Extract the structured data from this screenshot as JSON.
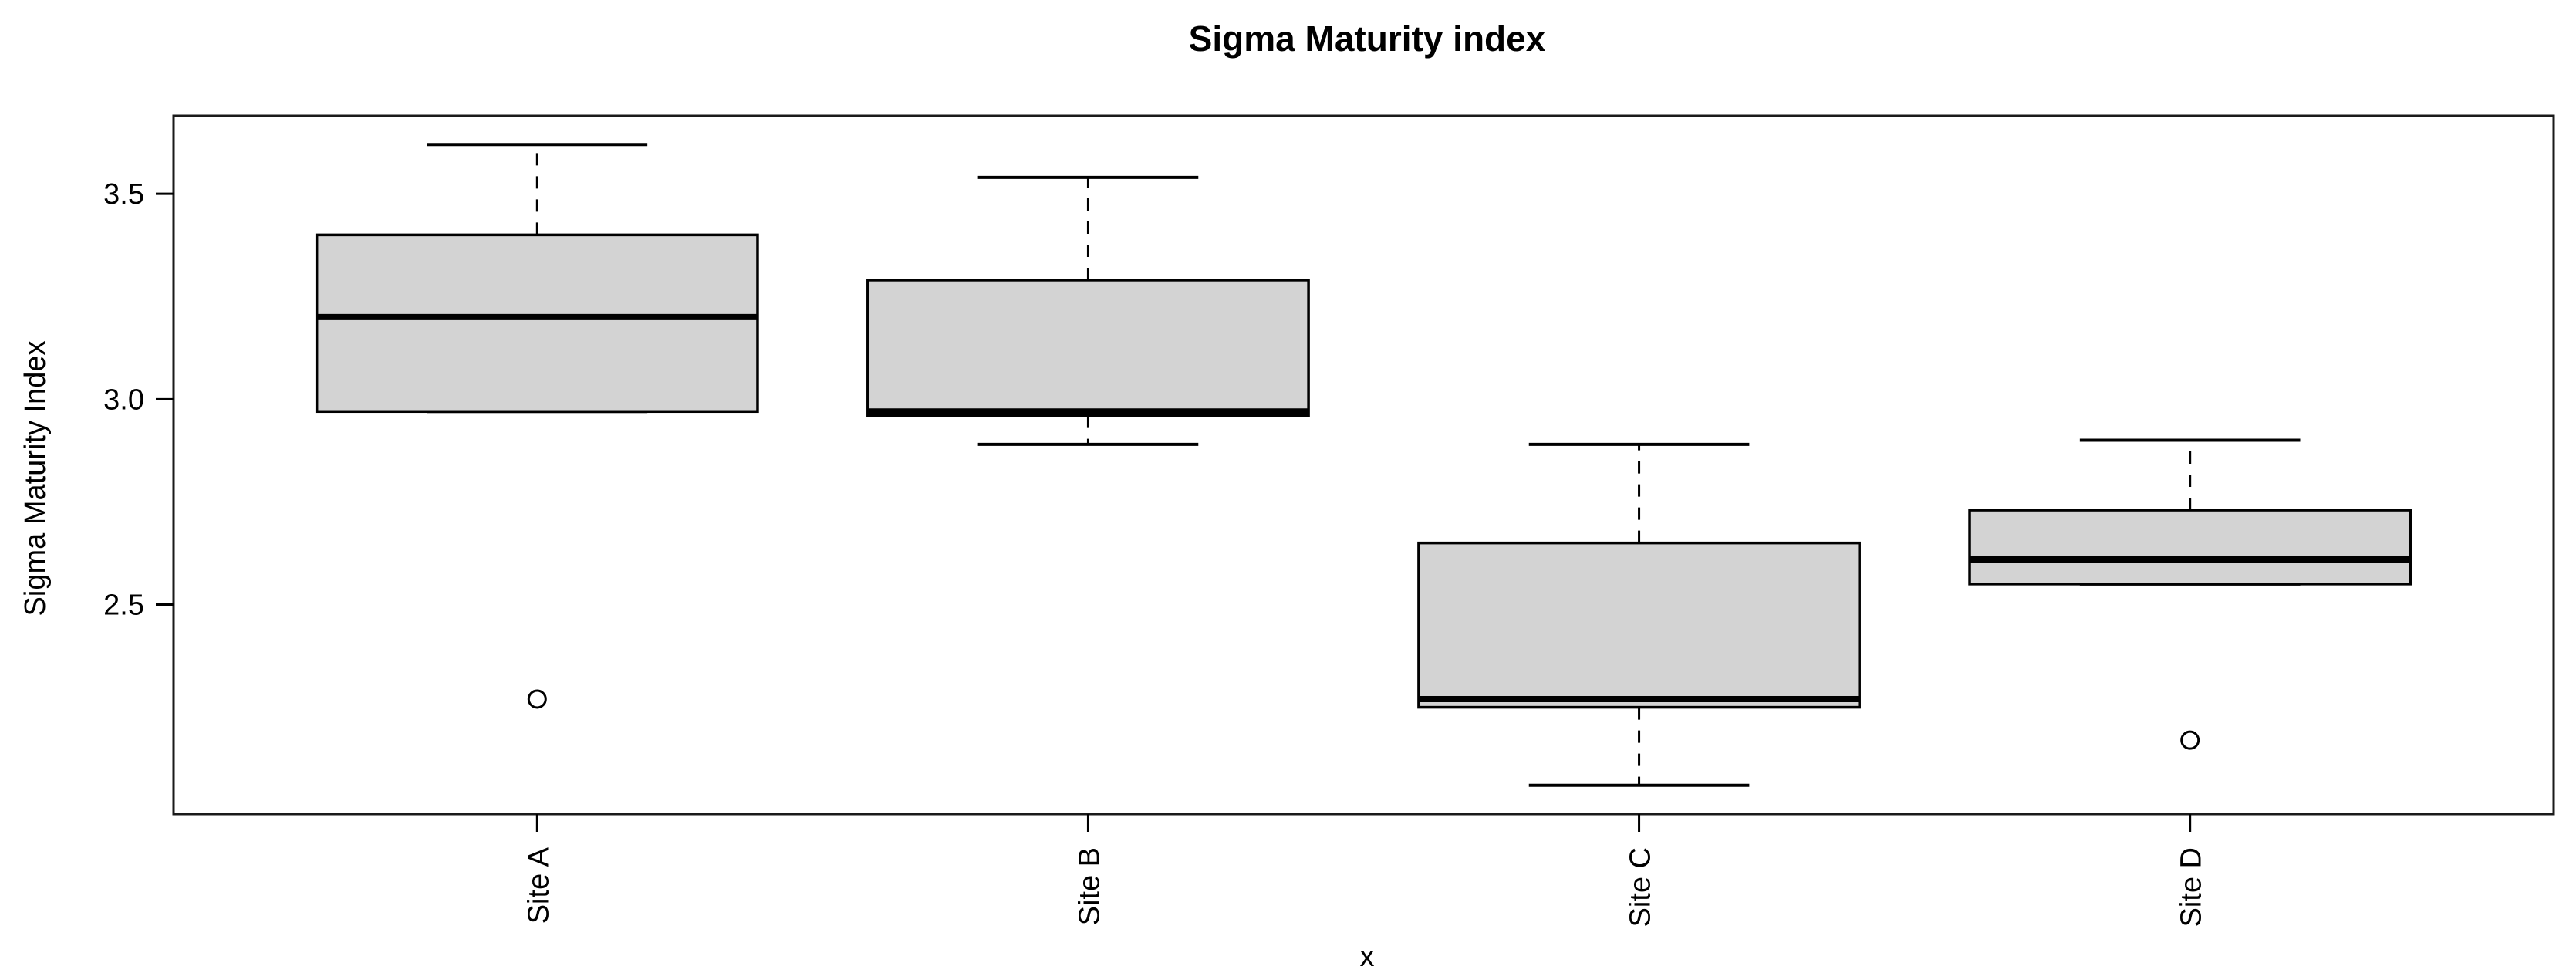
{
  "chart_data": {
    "type": "boxplot",
    "title": "Sigma Maturity index",
    "xlabel": "x",
    "ylabel": "Sigma Maturity Index",
    "categories": [
      "Site A",
      "Site B",
      "Site C",
      "Site D"
    ],
    "y_ticks": [
      2.5,
      3.0,
      3.5
    ],
    "y_tick_labels": [
      "2.5",
      "3.0",
      "3.5"
    ],
    "ylim": [
      1.99,
      3.69
    ],
    "xlim": [
      0.34,
      4.66
    ],
    "grid": "off",
    "legend": "none",
    "box_fill_color": "#d3d3d3",
    "line_color": "#000000",
    "series": [
      {
        "name": "Site A",
        "whisker_low": 2.97,
        "q1": 2.97,
        "median": 3.2,
        "q3": 3.4,
        "whisker_high": 3.62,
        "outliers": [
          2.27
        ]
      },
      {
        "name": "Site B",
        "whisker_low": 2.89,
        "q1": 2.96,
        "median": 2.97,
        "q3": 3.29,
        "whisker_high": 3.54,
        "outliers": []
      },
      {
        "name": "Site C",
        "whisker_low": 2.06,
        "q1": 2.25,
        "median": 2.27,
        "q3": 2.65,
        "whisker_high": 2.89,
        "outliers": []
      },
      {
        "name": "Site D",
        "whisker_low": 2.55,
        "q1": 2.55,
        "median": 2.61,
        "q3": 2.73,
        "whisker_high": 2.9,
        "outliers": [
          2.17
        ]
      }
    ]
  }
}
